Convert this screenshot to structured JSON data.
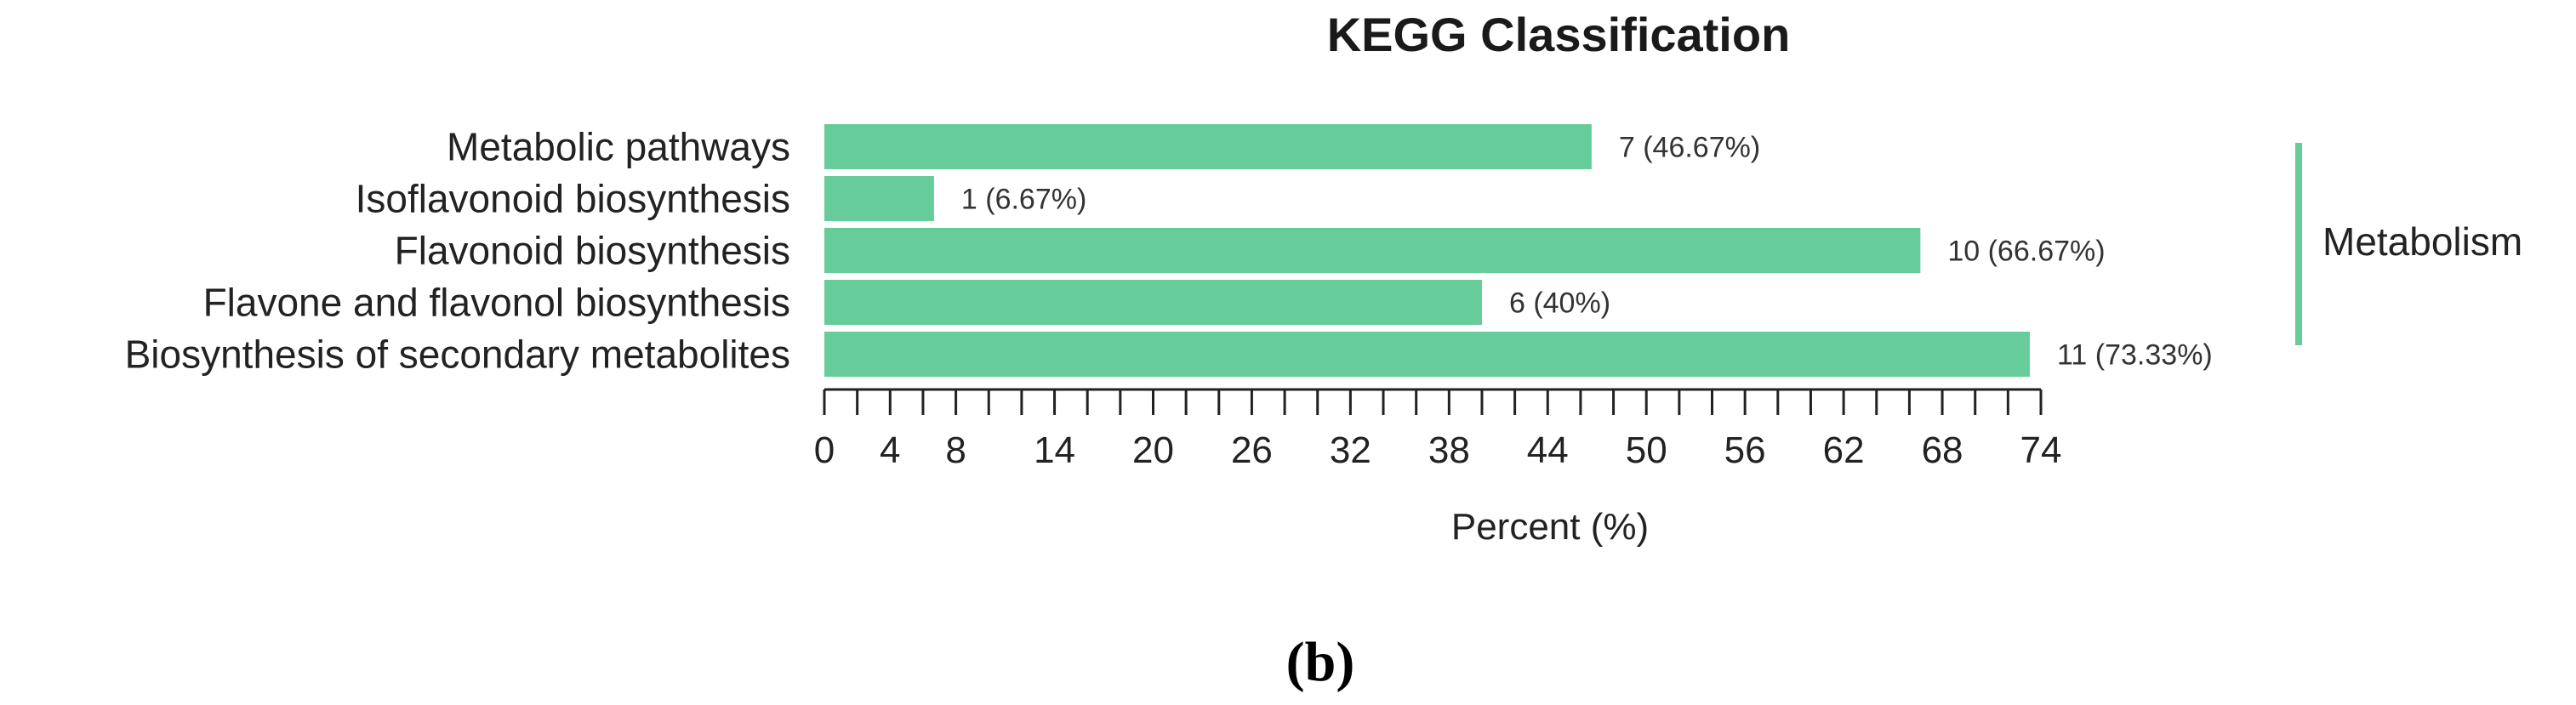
{
  "chart_data": {
    "type": "bar",
    "orientation": "horizontal",
    "title": "KEGG Classification",
    "xlabel": "Percent (%)",
    "ylabel": "",
    "xlim": [
      0,
      74
    ],
    "x_ticks": [
      0,
      4,
      8,
      14,
      20,
      26,
      32,
      38,
      44,
      50,
      56,
      62,
      68,
      74
    ],
    "categories": [
      "Metabolic pathways",
      "Isoflavonoid biosynthesis",
      "Flavonoid biosynthesis",
      "Flavone and flavonol biosynthesis",
      "Biosynthesis of secondary metabolites"
    ],
    "values": [
      46.67,
      6.67,
      66.67,
      40,
      73.33
    ],
    "counts": [
      7,
      1,
      10,
      6,
      11
    ],
    "data_labels": [
      "7 (46.67%)",
      "1 (6.67%)",
      "10 (66.67%)",
      "6 (40%)",
      "11 (73.33%)"
    ],
    "group_label": "Metabolism",
    "bar_color": "#66cc99",
    "group_bracket_color": "#66cc99",
    "grid": false
  },
  "panel_label": "(b)"
}
